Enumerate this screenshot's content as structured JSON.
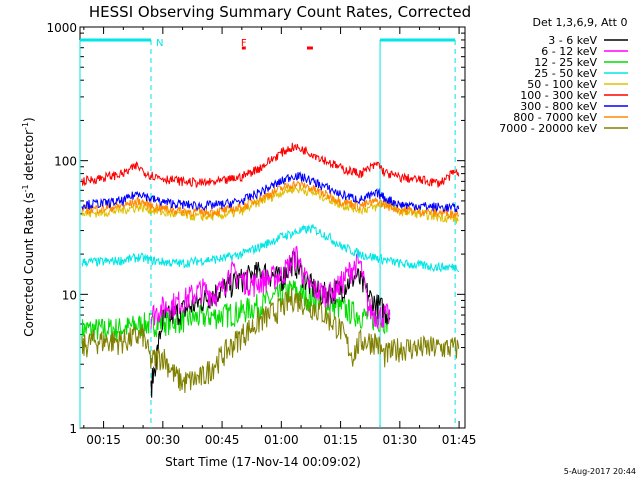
{
  "chart_data": {
    "type": "line",
    "title": "HESSI Observing Summary Count Rates, Corrected",
    "xlabel": "Start Time (17-Nov-14 00:09:02)",
    "ylabel_main": "Corrected Count Rate (s",
    "ylabel_sup1": "-1",
    "ylabel_mid": " detector",
    "ylabel_sup2": "-1",
    "ylabel_end": ")",
    "footer_date": "5-Aug-2017 20:44",
    "y_scale": "log",
    "ylim": [
      1,
      1000
    ],
    "xlim_minutes": [
      9.03,
      106.5
    ],
    "x_ticks": [
      {
        "minutes": 15,
        "label": "00:15"
      },
      {
        "minutes": 30,
        "label": "00:30"
      },
      {
        "minutes": 45,
        "label": "00:45"
      },
      {
        "minutes": 60,
        "label": "01:00"
      },
      {
        "minutes": 75,
        "label": "01:15"
      },
      {
        "minutes": 90,
        "label": "01:30"
      },
      {
        "minutes": 105,
        "label": "01:45"
      }
    ],
    "y_ticks": [
      {
        "value": 1,
        "label": "1"
      },
      {
        "value": 10,
        "label": "10"
      },
      {
        "value": 100,
        "label": "100"
      },
      {
        "value": 1000,
        "label": "1000"
      }
    ],
    "legend_header": "Det 1,3,6,9, Att 0",
    "legend_position": "right",
    "series": [
      {
        "name": "3 - 6 keV",
        "color": "#000000",
        "x": [
          27,
          30,
          40,
          45,
          50,
          55,
          60,
          63,
          67,
          70,
          75,
          79,
          83,
          87.5
        ],
        "y": [
          2,
          6.5,
          9,
          11,
          13,
          15,
          13,
          18,
          12,
          10,
          11,
          14,
          9,
          7
        ]
      },
      {
        "name": "6 - 12 keV",
        "color": "#ff00ff",
        "x": [
          27,
          30,
          35,
          40,
          43,
          45,
          47,
          50,
          53,
          56,
          60,
          64,
          66,
          68,
          72,
          75,
          78,
          80,
          82,
          84,
          87.5
        ],
        "y": [
          7,
          8,
          9,
          11,
          10,
          11,
          15,
          13,
          12,
          13,
          14,
          20,
          13,
          11,
          10,
          12,
          16,
          17,
          8,
          7,
          7
        ]
      },
      {
        "name": "12 - 25 keV",
        "color": "#00dd00",
        "x": [
          9.5,
          15,
          20,
          25,
          30,
          35,
          40,
          45,
          50,
          55,
          60,
          63,
          65,
          70,
          75,
          80,
          85,
          87.5
        ],
        "y": [
          5.5,
          5.5,
          5.6,
          6,
          6.2,
          6.5,
          6.8,
          7,
          7.5,
          8.5,
          10,
          11,
          10,
          9,
          8,
          7,
          6.5,
          6.5
        ]
      },
      {
        "name": "25 - 50 keV",
        "color": "#00e5e5",
        "x": [
          9.5,
          15,
          20,
          24,
          27,
          30,
          35,
          40,
          45,
          50,
          55,
          60,
          65,
          68,
          72,
          75,
          80,
          85,
          90,
          95,
          100,
          105
        ],
        "y": [
          17.5,
          17.5,
          18,
          19,
          18,
          17.5,
          17,
          18,
          18.5,
          20,
          23,
          27,
          30,
          31,
          27,
          23,
          20,
          18.5,
          17,
          16.5,
          16,
          16
        ]
      },
      {
        "name": "50 - 100 keV",
        "color": "#e0c000",
        "x": [
          9.5,
          15,
          20,
          24,
          27,
          30,
          35,
          40,
          45,
          50,
          55,
          60,
          63,
          66,
          70,
          75,
          80,
          84,
          86,
          90,
          95,
          100,
          104,
          105
        ],
        "y": [
          40,
          41,
          43,
          45,
          43,
          41,
          39,
          38,
          39,
          42,
          50,
          58,
          62,
          60,
          55,
          47,
          43,
          45,
          48,
          42,
          40,
          38,
          37,
          35
        ]
      },
      {
        "name": "100 - 300 keV",
        "color": "#ff0000",
        "x": [
          9.5,
          15,
          20,
          23.5,
          25,
          27,
          30,
          35,
          40,
          45,
          50,
          55,
          60,
          63,
          66,
          70,
          75,
          80,
          84.5,
          86,
          88,
          90,
          95,
          100,
          104,
          105
        ],
        "y": [
          70,
          75,
          80,
          92,
          84,
          78,
          74,
          70,
          68,
          70,
          76,
          90,
          115,
          127,
          120,
          105,
          88,
          80,
          95,
          82,
          78,
          75,
          72,
          68,
          82,
          78
        ]
      },
      {
        "name": "300 - 800 keV",
        "color": "#0000ff",
        "x": [
          9.5,
          15,
          20,
          24,
          27,
          30,
          35,
          40,
          45,
          50,
          55,
          60,
          63,
          66,
          70,
          75,
          80,
          84.5,
          86,
          90,
          95,
          100,
          105
        ],
        "y": [
          47,
          48,
          50,
          58,
          52,
          49,
          47,
          46,
          47,
          50,
          59,
          70,
          78,
          74,
          66,
          56,
          51,
          57,
          53,
          47,
          46,
          45,
          44
        ]
      },
      {
        "name": "800 - 7000 keV",
        "color": "#ff8800",
        "x": [
          9.5,
          15,
          20,
          24,
          27,
          30,
          35,
          40,
          45,
          50,
          55,
          60,
          63,
          66,
          70,
          75,
          80,
          84.5,
          86,
          90,
          95,
          100,
          105
        ],
        "y": [
          43,
          44,
          46,
          50,
          46,
          44,
          42,
          41,
          42,
          45,
          53,
          62,
          67,
          65,
          58,
          50,
          46,
          50,
          47,
          43,
          42,
          41,
          40
        ]
      },
      {
        "name": "7000 - 20000 keV",
        "color": "#808000",
        "x": [
          9.5,
          12,
          15,
          20,
          25,
          27,
          30,
          33,
          35,
          40,
          45,
          50,
          55,
          60,
          63,
          65,
          70,
          75,
          78,
          80,
          84,
          86,
          90,
          95,
          100,
          105
        ],
        "y": [
          4,
          4.5,
          4.5,
          4.5,
          5,
          3.2,
          3.5,
          2.5,
          2.2,
          2.4,
          3.5,
          5,
          6.5,
          8,
          9.5,
          9,
          7.5,
          5.5,
          3.5,
          4.5,
          4.5,
          3.5,
          4,
          4,
          4,
          4
        ]
      }
    ],
    "markers": [
      {
        "label": "N",
        "color": "#00e5e5",
        "x": 27
      },
      {
        "label": "F",
        "color": "#ff0000",
        "x": 48.5
      }
    ],
    "night_intervals": [
      {
        "start": 9.03,
        "end": 27
      },
      {
        "start": 85,
        "end": 104
      }
    ],
    "flare_bars": [
      {
        "start": 50,
        "end": 51
      },
      {
        "start": 66.5,
        "end": 68
      }
    ]
  }
}
